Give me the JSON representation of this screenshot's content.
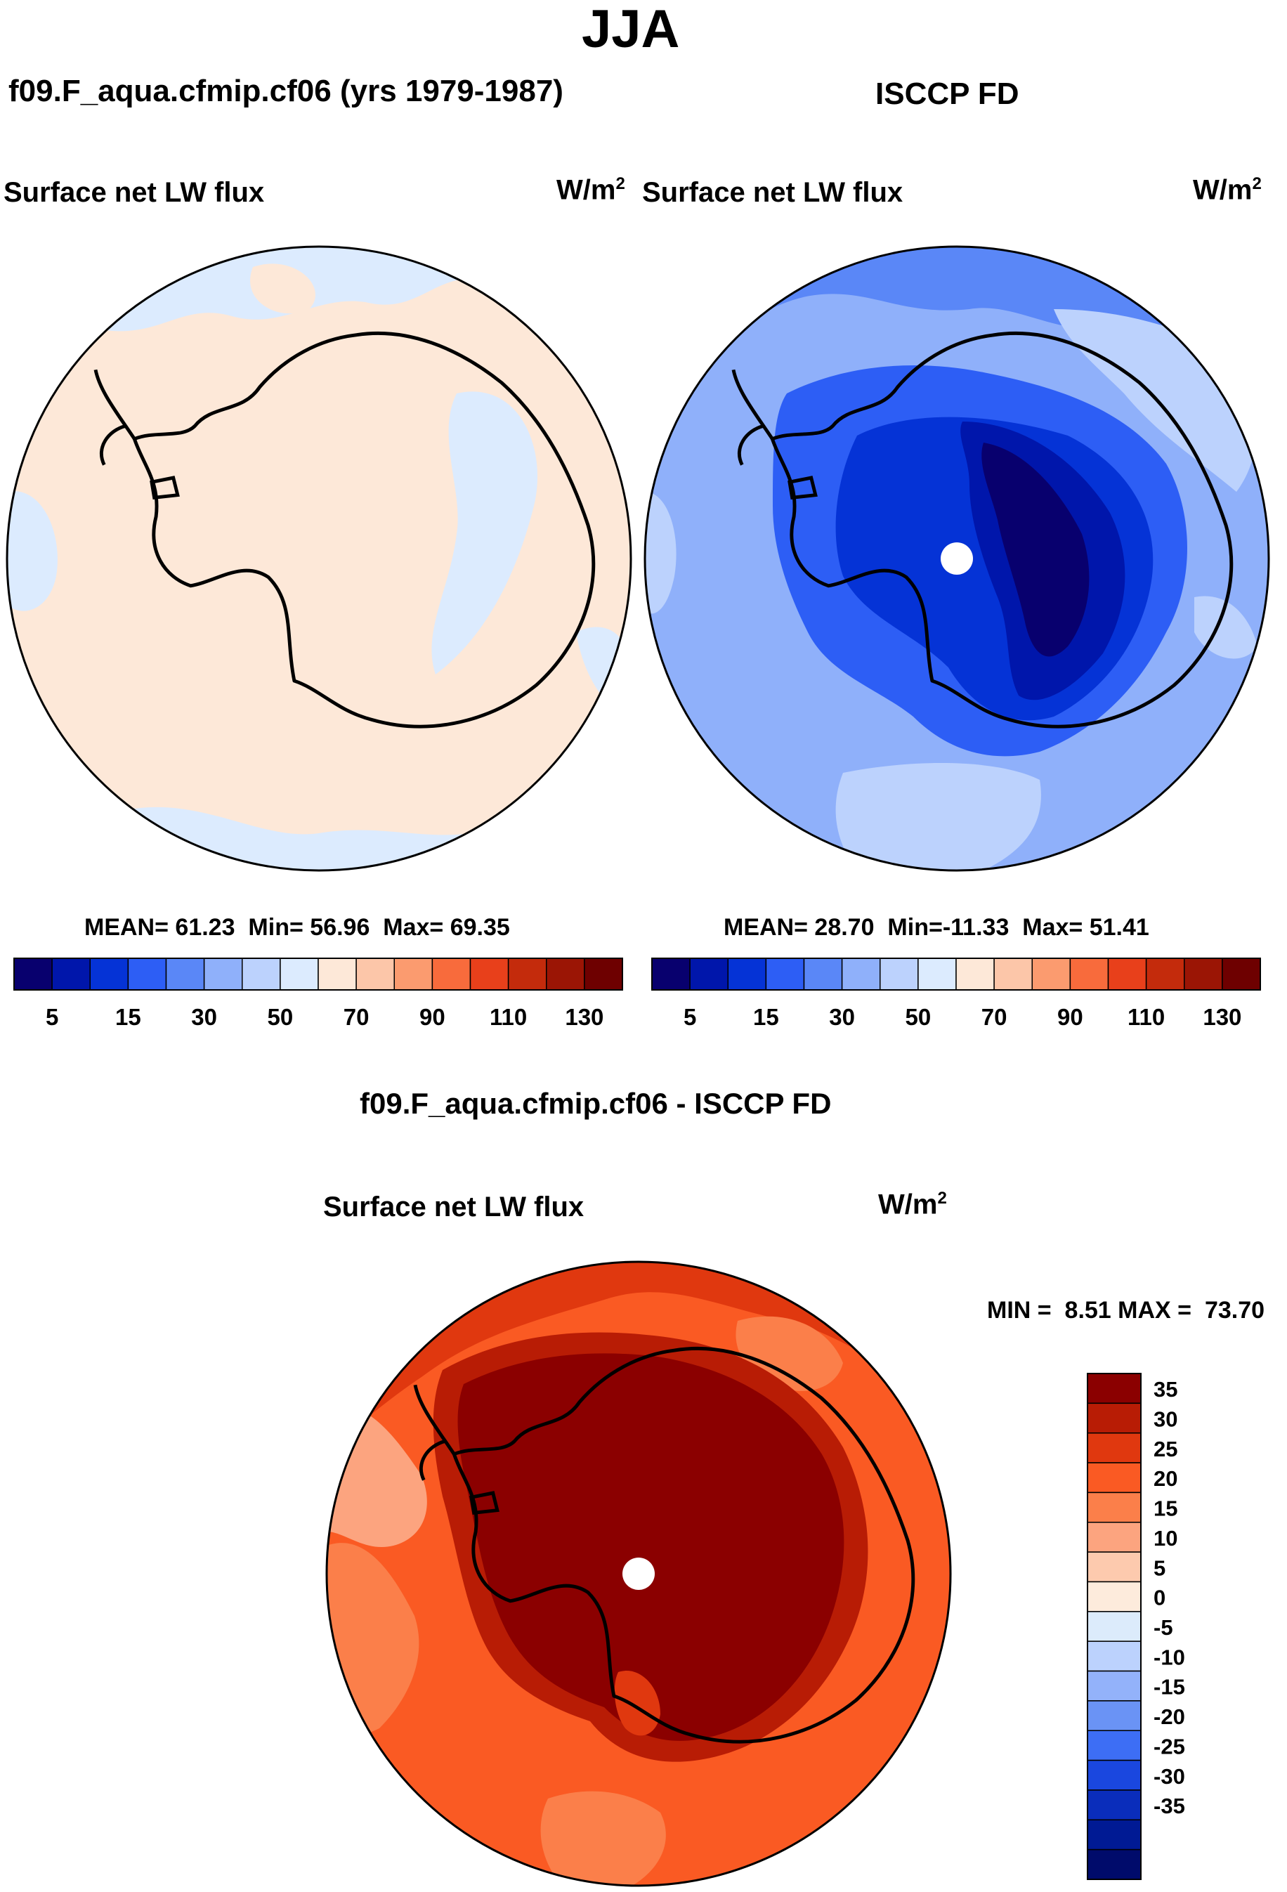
{
  "page_title": "JJA",
  "panels": {
    "left": {
      "case_title": "f09.F_aqua.cfmip.cf06 (yrs 1979-1987)",
      "variable": "Surface net LW flux",
      "units": "W/m",
      "units_sup": "2",
      "stats": {
        "mean_label": "MEAN=",
        "mean": "61.23",
        "min_label": "Min=",
        "min": "56.96",
        "max_label": "Max=",
        "max": "69.35"
      }
    },
    "right": {
      "case_title": "ISCCP FD",
      "variable": "Surface net LW flux",
      "units": "W/m",
      "units_sup": "2",
      "stats": {
        "mean_label": "MEAN=",
        "mean": "28.70",
        "min_label": "Min=",
        "min": "-11.33",
        "max_label": "Max=",
        "max": "51.41"
      }
    },
    "diff": {
      "case_title": "f09.F_aqua.cfmip.cf06 - ISCCP FD",
      "variable": "Surface net LW flux",
      "units": "W/m",
      "units_sup": "2",
      "stats": {
        "min_label": "MIN =",
        "min": "8.51",
        "max_label": "MAX =",
        "max": "73.70"
      }
    }
  },
  "chart_data": [
    {
      "type": "heatmap",
      "projection": "south-polar-stereographic",
      "title": "Surface net LW flux",
      "subtitle": "f09.F_aqua.cfmip.cf06 (yrs 1979-1987)",
      "units": "W/m2",
      "mean": 61.23,
      "min": 56.96,
      "max": 69.35,
      "colorbar_ticks": [
        "5",
        "15",
        "30",
        "50",
        "70",
        "90",
        "110",
        "130"
      ],
      "field_description": "near-uniform 50-70 W/m2 over ocean and continent"
    },
    {
      "type": "heatmap",
      "projection": "south-polar-stereographic",
      "title": "Surface net LW flux",
      "subtitle": "ISCCP FD",
      "units": "W/m2",
      "mean": 28.7,
      "min": -11.33,
      "max": 51.41,
      "colorbar_ticks": [
        "5",
        "15",
        "30",
        "50",
        "70",
        "90",
        "110",
        "130"
      ],
      "field_description": "lowest over East Antarctic plateau, 30-50 over ocean"
    },
    {
      "type": "heatmap",
      "projection": "south-polar-stereographic",
      "title": "Surface net LW flux",
      "subtitle": "f09.F_aqua.cfmip.cf06 - ISCCP FD",
      "units": "W/m2",
      "min": 8.51,
      "max": 73.7,
      "colorbar_ticks": [
        "35",
        "30",
        "25",
        "20",
        "15",
        "10",
        "5",
        "0",
        "-5",
        "-10",
        "-15",
        "-20",
        "-25",
        "-30",
        "-35"
      ],
      "field_description": "largest positive differences (>35) over Antarctica, 15-30 over Southern Ocean"
    }
  ],
  "colors": {
    "abs_scale": [
      "#08006e",
      "#0016ab",
      "#0533d6",
      "#2d5ef5",
      "#5a87f7",
      "#8fb0fa",
      "#bcd2fd",
      "#dcebfe",
      "#fde8d8",
      "#fcc6a9",
      "#fb9b6f",
      "#f86b3c",
      "#e8401b",
      "#c42b0c",
      "#9b1505",
      "#6e0000"
    ],
    "diff_scale": [
      "#8b0000",
      "#b81c05",
      "#e0380f",
      "#fa5a23",
      "#fb7f4a",
      "#fca47f",
      "#fdcaae",
      "#fdebdc",
      "#dcebfb",
      "#bcd2fd",
      "#93b2fa",
      "#6a93f5",
      "#3d6ef5",
      "#1a47df",
      "#0a2dbb",
      "#001a94",
      "#000b6b"
    ]
  }
}
